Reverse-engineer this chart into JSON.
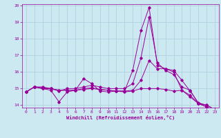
{
  "xlabel": "Windchill (Refroidissement éolien,°C)",
  "bg_color": "#cce8f0",
  "line_color": "#990099",
  "grid_color": "#aaccdd",
  "xlim": [
    -0.5,
    23.5
  ],
  "ylim": [
    13.85,
    20.1
  ],
  "yticks": [
    14,
    15,
    16,
    17,
    18,
    19,
    20
  ],
  "xticks": [
    0,
    1,
    2,
    3,
    4,
    5,
    6,
    7,
    8,
    9,
    10,
    11,
    12,
    13,
    14,
    15,
    16,
    17,
    18,
    19,
    20,
    21,
    22,
    23
  ],
  "series": [
    {
      "x": [
        0,
        1,
        2,
        3,
        4,
        5,
        6,
        7,
        8,
        9,
        10,
        11,
        12,
        13,
        14,
        15,
        16,
        17,
        18,
        19,
        20,
        21,
        22,
        23
      ],
      "y": [
        14.8,
        15.1,
        15.0,
        14.9,
        14.2,
        14.8,
        14.9,
        15.6,
        15.3,
        14.85,
        14.8,
        14.85,
        14.85,
        16.1,
        18.5,
        19.9,
        16.4,
        16.2,
        16.0,
        14.9,
        14.5,
        14.1,
        13.9,
        13.7
      ]
    },
    {
      "x": [
        0,
        1,
        2,
        3,
        4,
        5,
        6,
        7,
        8,
        9,
        10,
        11,
        12,
        13,
        14,
        15,
        16,
        17,
        18,
        19,
        20,
        21,
        22,
        23
      ],
      "y": [
        14.8,
        15.1,
        15.1,
        15.0,
        14.85,
        15.0,
        15.0,
        15.1,
        15.2,
        15.1,
        15.0,
        15.0,
        15.0,
        15.3,
        16.85,
        19.3,
        16.55,
        16.1,
        15.85,
        15.1,
        14.9,
        14.1,
        14.0,
        13.75
      ]
    },
    {
      "x": [
        0,
        1,
        2,
        3,
        4,
        5,
        6,
        7,
        8,
        9,
        10,
        11,
        12,
        13,
        14,
        15,
        16,
        17,
        18,
        19,
        20,
        21,
        22,
        23
      ],
      "y": [
        14.8,
        15.1,
        15.0,
        15.0,
        14.9,
        14.9,
        14.9,
        15.0,
        15.05,
        14.95,
        14.9,
        14.85,
        14.85,
        14.9,
        15.5,
        16.7,
        16.2,
        16.2,
        16.1,
        15.5,
        14.85,
        14.15,
        14.0,
        13.75
      ]
    },
    {
      "x": [
        0,
        1,
        2,
        3,
        4,
        5,
        6,
        7,
        8,
        9,
        10,
        11,
        12,
        13,
        14,
        15,
        16,
        17,
        18,
        19,
        20,
        21,
        22,
        23
      ],
      "y": [
        14.8,
        15.1,
        15.05,
        15.0,
        14.9,
        14.9,
        14.9,
        14.95,
        15.0,
        14.95,
        14.9,
        14.85,
        14.8,
        14.85,
        15.0,
        15.0,
        15.0,
        14.95,
        14.85,
        14.9,
        14.6,
        14.1,
        13.9,
        13.7
      ]
    }
  ]
}
